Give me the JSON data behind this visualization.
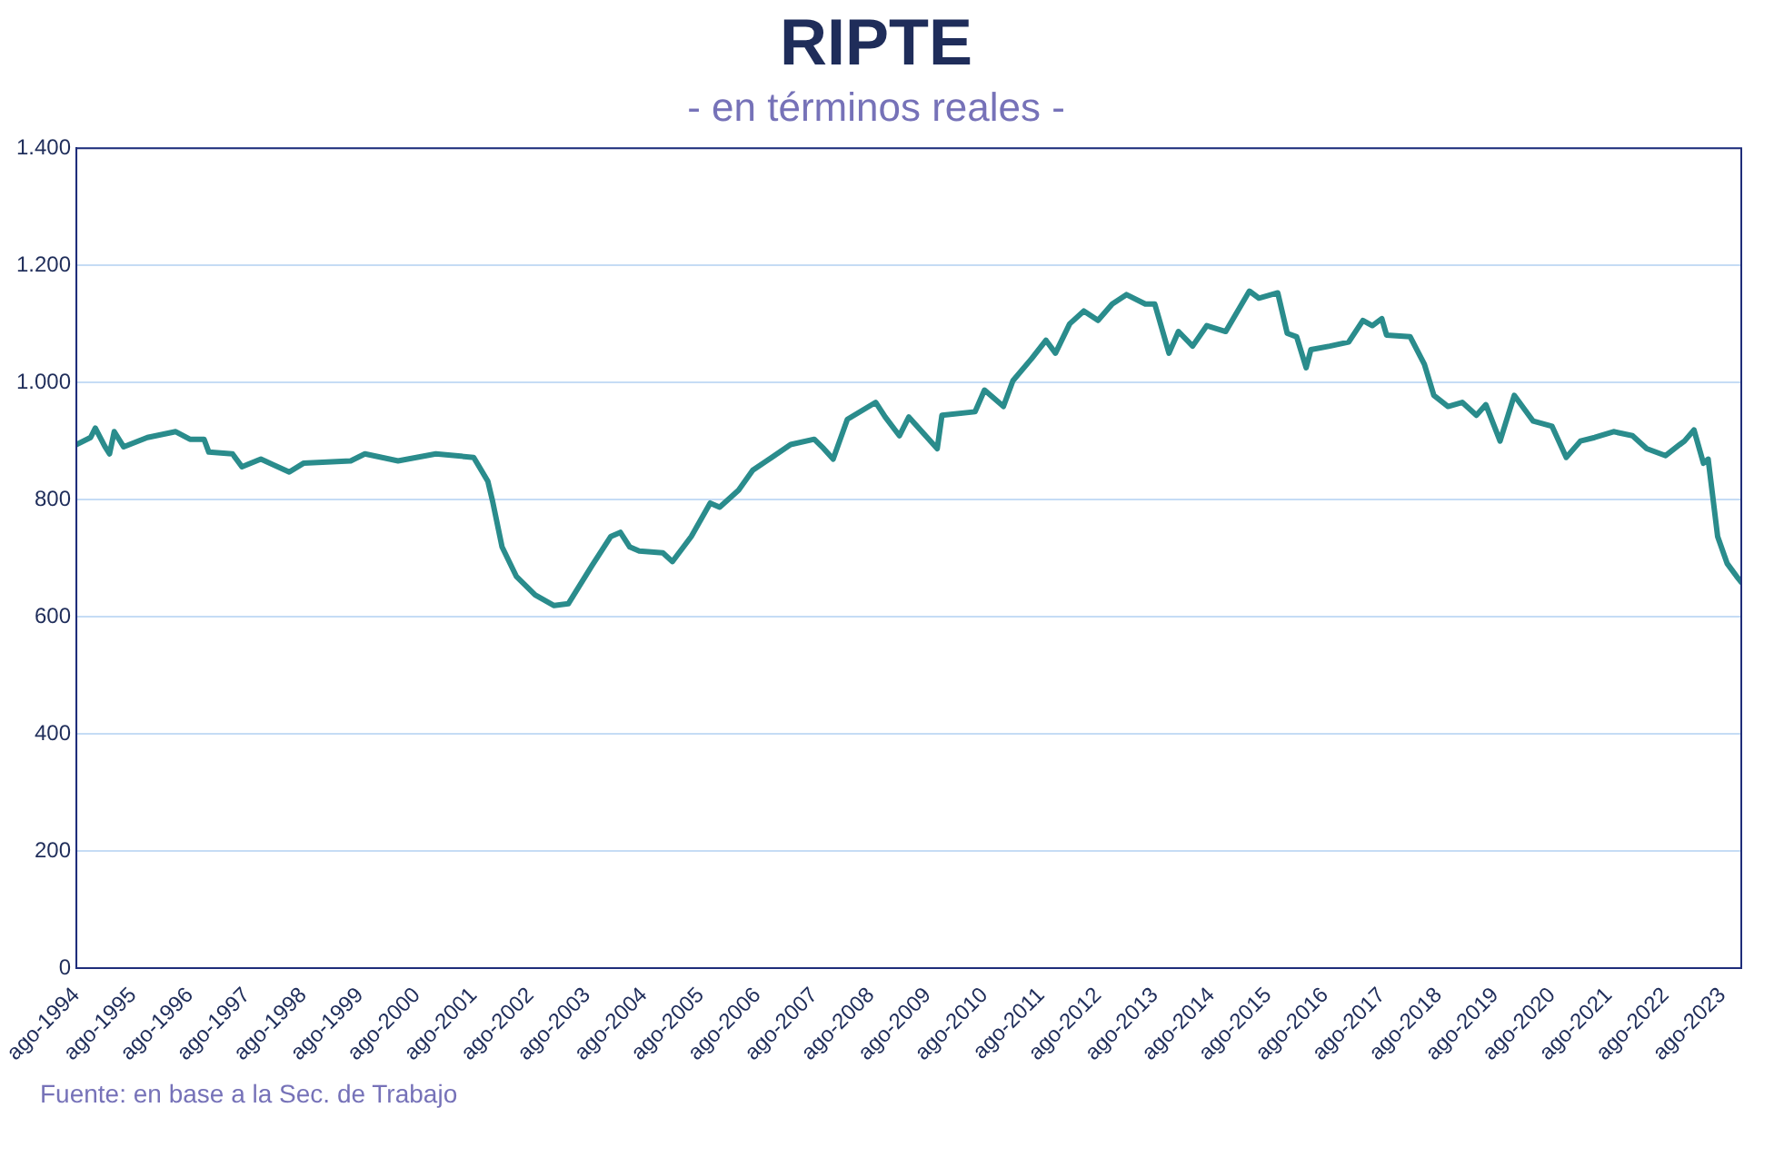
{
  "chart_data": {
    "type": "line",
    "title": "RIPTE",
    "subtitle": "- en términos reales -",
    "annotations": [
      "Fuente: en base a la Sec. de Trabajo"
    ],
    "x": [
      "1994-08",
      "1994-11",
      "1994-12",
      "1995-02",
      "1995-03",
      "1995-04",
      "1995-06",
      "1995-11",
      "1996-05",
      "1996-08",
      "1996-11",
      "1996-12",
      "1997-05",
      "1997-07",
      "1997-11",
      "1998-05",
      "1998-08",
      "1999-06",
      "1999-09",
      "2000-04",
      "2000-12",
      "2001-08",
      "2001-11",
      "2001-12",
      "2002-02",
      "2002-05",
      "2002-09",
      "2003-01",
      "2003-04",
      "2003-09",
      "2004-01",
      "2004-03",
      "2004-05",
      "2004-07",
      "2004-12",
      "2005-02",
      "2005-06",
      "2005-10",
      "2005-12",
      "2006-04",
      "2006-07",
      "2006-11",
      "2007-03",
      "2007-08",
      "2007-10",
      "2007-12",
      "2008-03",
      "2008-09",
      "2008-11",
      "2009-02",
      "2009-04",
      "2009-10",
      "2009-11",
      "2010-06",
      "2010-08",
      "2010-12",
      "2011-02",
      "2011-06",
      "2011-09",
      "2011-11",
      "2012-02",
      "2012-05",
      "2012-08",
      "2012-11",
      "2013-02",
      "2013-06",
      "2013-08",
      "2013-11",
      "2014-01",
      "2014-04",
      "2014-07",
      "2014-11",
      "2015-04",
      "2015-06",
      "2015-10",
      "2015-12",
      "2016-02",
      "2016-04",
      "2016-05",
      "2016-09",
      "2017-01",
      "2017-04",
      "2017-06",
      "2017-08",
      "2017-09",
      "2018-02",
      "2018-05",
      "2018-07",
      "2018-10",
      "2019-01",
      "2019-04",
      "2019-06",
      "2019-09",
      "2019-12",
      "2020-04",
      "2020-08",
      "2020-11",
      "2021-02",
      "2021-05",
      "2021-09",
      "2022-01",
      "2022-04",
      "2022-08",
      "2022-11",
      "2022-12",
      "2023-02",
      "2023-04",
      "2023-05",
      "2023-07",
      "2023-09",
      "2023-11",
      "2023-12"
    ],
    "series": [
      {
        "color": "#2a8c8c",
        "values": [
          894,
          906,
          922,
          891,
          878,
          916,
          890,
          906,
          916,
          903,
          903,
          881,
          878,
          856,
          869,
          847,
          862,
          866,
          878,
          866,
          878,
          872,
          831,
          797,
          719,
          669,
          637,
          619,
          622,
          687,
          737,
          744,
          719,
          712,
          709,
          694,
          737,
          794,
          787,
          816,
          850,
          872,
          894,
          903,
          887,
          869,
          937,
          966,
          941,
          909,
          941,
          887,
          944,
          950,
          987,
          959,
          1003,
          1041,
          1072,
          1050,
          1100,
          1122,
          1106,
          1134,
          1150,
          1134,
          1134,
          1050,
          1087,
          1062,
          1097,
          1087,
          1156,
          1144,
          1153,
          1084,
          1078,
          1025,
          1056,
          1062,
          1069,
          1106,
          1097,
          1109,
          1081,
          1078,
          1031,
          978,
          959,
          966,
          944,
          962,
          900,
          978,
          934,
          925,
          872,
          900,
          906,
          916,
          909,
          887,
          875,
          894,
          900,
          919,
          862,
          869,
          737,
          691,
          669,
          659
        ]
      }
    ],
    "xlim": [
      "1994-08",
      "2023-12"
    ],
    "xticks": [
      {
        "value": "1994-08",
        "label": "ago-1994"
      },
      {
        "value": "1995-08",
        "label": "ago-1995"
      },
      {
        "value": "1996-08",
        "label": "ago-1996"
      },
      {
        "value": "1997-08",
        "label": "ago-1997"
      },
      {
        "value": "1998-08",
        "label": "ago-1998"
      },
      {
        "value": "1999-08",
        "label": "ago-1999"
      },
      {
        "value": "2000-08",
        "label": "ago-2000"
      },
      {
        "value": "2001-08",
        "label": "ago-2001"
      },
      {
        "value": "2002-08",
        "label": "ago-2002"
      },
      {
        "value": "2003-08",
        "label": "ago-2003"
      },
      {
        "value": "2004-08",
        "label": "ago-2004"
      },
      {
        "value": "2005-08",
        "label": "ago-2005"
      },
      {
        "value": "2006-08",
        "label": "ago-2006"
      },
      {
        "value": "2007-08",
        "label": "ago-2007"
      },
      {
        "value": "2008-08",
        "label": "ago-2008"
      },
      {
        "value": "2009-08",
        "label": "ago-2009"
      },
      {
        "value": "2010-08",
        "label": "ago-2010"
      },
      {
        "value": "2011-08",
        "label": "ago-2011"
      },
      {
        "value": "2012-08",
        "label": "ago-2012"
      },
      {
        "value": "2013-08",
        "label": "ago-2013"
      },
      {
        "value": "2014-08",
        "label": "ago-2014"
      },
      {
        "value": "2015-08",
        "label": "ago-2015"
      },
      {
        "value": "2016-08",
        "label": "ago-2016"
      },
      {
        "value": "2017-08",
        "label": "ago-2017"
      },
      {
        "value": "2018-08",
        "label": "ago-2018"
      },
      {
        "value": "2019-08",
        "label": "ago-2019"
      },
      {
        "value": "2020-08",
        "label": "ago-2020"
      },
      {
        "value": "2021-08",
        "label": "ago-2021"
      },
      {
        "value": "2022-08",
        "label": "ago-2022"
      },
      {
        "value": "2023-08",
        "label": "ago-2023"
      }
    ],
    "ylim": [
      0,
      1400
    ],
    "yticks": [
      0,
      200,
      400,
      600,
      800,
      {
        "value": 1000,
        "label": "1.000"
      },
      {
        "value": 1200,
        "label": "1.200"
      },
      {
        "value": 1400,
        "label": "1.400"
      }
    ],
    "grid": "y",
    "marker": "none",
    "line_style": "solid",
    "legend": false
  }
}
